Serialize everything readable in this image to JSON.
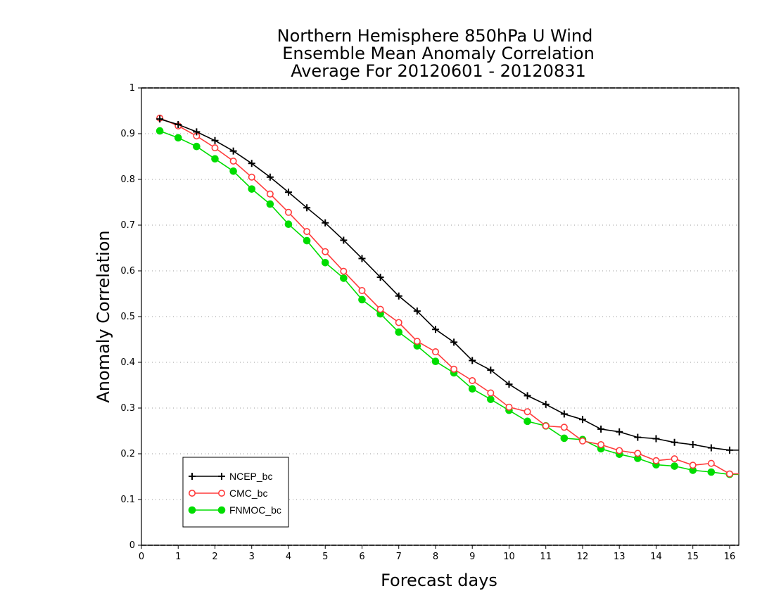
{
  "chart_data": {
    "type": "line",
    "title_lines": [
      "Northern Hemisphere 850hPa U Wind",
      "Ensemble Mean Anomaly Correlation",
      "Average For 20120601 - 20120831"
    ],
    "xlabel": "Forecast days",
    "ylabel": "Anomaly Correlation",
    "xlim": [
      0,
      16.25
    ],
    "ylim": [
      0,
      1
    ],
    "xticks": [
      0,
      1,
      2,
      3,
      4,
      5,
      6,
      7,
      8,
      9,
      10,
      11,
      12,
      13,
      14,
      15,
      16
    ],
    "yticks": [
      0,
      0.1,
      0.2,
      0.3,
      0.4,
      0.5,
      0.6,
      0.7,
      0.8,
      0.9,
      1
    ],
    "ytick_labels": [
      "0",
      "0.1",
      "0.2",
      "0.3",
      "0.4",
      "0.5",
      "0.6",
      "0.7",
      "0.8",
      "0.9",
      "1"
    ],
    "grid": "horizontal dotted",
    "legend_position": "bottom-left",
    "x": [
      0.5,
      1,
      1.5,
      2,
      2.5,
      3,
      3.5,
      4,
      4.5,
      5,
      5.5,
      6,
      6.5,
      7,
      7.5,
      8,
      8.5,
      9,
      9.5,
      10,
      10.5,
      11,
      11.5,
      12,
      12.5,
      13,
      13.5,
      14,
      14.5,
      15,
      15.5,
      16
    ],
    "series": [
      {
        "name": "NCEP_bc",
        "color": "#000000",
        "marker": "plus",
        "values": [
          0.932,
          0.92,
          0.904,
          0.885,
          0.862,
          0.835,
          0.805,
          0.772,
          0.738,
          0.705,
          0.667,
          0.627,
          0.586,
          0.545,
          0.512,
          0.472,
          0.444,
          0.404,
          0.383,
          0.352,
          0.327,
          0.308,
          0.287,
          0.275,
          0.254,
          0.248,
          0.236,
          0.233,
          0.225,
          0.22,
          0.213,
          0.208
        ]
      },
      {
        "name": "CMC_bc",
        "color": "#ff3b3b",
        "marker": "open-circle",
        "values": [
          0.934,
          0.917,
          0.895,
          0.869,
          0.84,
          0.805,
          0.768,
          0.728,
          0.686,
          0.642,
          0.599,
          0.557,
          0.516,
          0.487,
          0.446,
          0.423,
          0.385,
          0.36,
          0.333,
          0.302,
          0.292,
          0.261,
          0.258,
          0.228,
          0.22,
          0.207,
          0.201,
          0.185,
          0.189,
          0.175,
          0.179,
          0.156
        ]
      },
      {
        "name": "FNMOC_bc",
        "color": "#00dd00",
        "marker": "filled-circle",
        "values": [
          0.906,
          0.891,
          0.872,
          0.845,
          0.818,
          0.779,
          0.746,
          0.702,
          0.666,
          0.618,
          0.584,
          0.537,
          0.506,
          0.466,
          0.436,
          0.402,
          0.377,
          0.342,
          0.319,
          0.295,
          0.271,
          0.261,
          0.234,
          0.231,
          0.211,
          0.199,
          0.19,
          0.176,
          0.173,
          0.164,
          0.16,
          0.155
        ]
      }
    ]
  }
}
